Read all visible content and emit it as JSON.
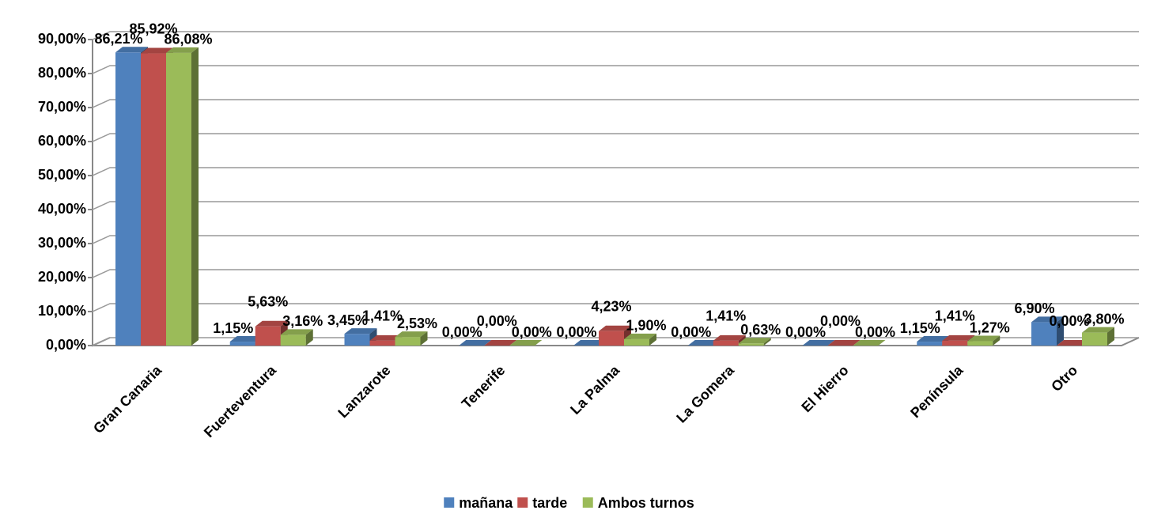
{
  "chart_data": {
    "type": "bar3d",
    "categories": [
      "Gran Canaria",
      "Fuerteventura",
      "Lanzarote",
      "Tenerife",
      "La Palma",
      "La Gomera",
      "El Hierro",
      "Península",
      "Otro"
    ],
    "series": [
      {
        "name": "mañana",
        "color": "#4f81bd",
        "values": [
          86.21,
          1.15,
          3.45,
          0,
          0,
          0,
          0,
          1.15,
          6.9
        ],
        "value_labels": [
          "86,21%",
          "1,15%",
          "3,45%",
          "0,00%",
          "0,00%",
          "0,00%",
          "0,00%",
          "1,15%",
          "6,90%"
        ]
      },
      {
        "name": "tarde",
        "color": "#c0504d",
        "values": [
          85.92,
          5.63,
          1.41,
          0,
          4.23,
          1.41,
          0,
          1.41,
          0
        ],
        "value_labels": [
          "85,92%",
          "5,63%",
          "1,41%",
          "0,00%",
          "4,23%",
          "1,41%",
          "0,00%",
          "1,41%",
          "0,00%"
        ]
      },
      {
        "name": "Ambos turnos",
        "color": "#9bbb59",
        "values": [
          86.08,
          3.16,
          2.53,
          0,
          1.9,
          0.63,
          0,
          1.27,
          3.8
        ],
        "value_labels": [
          "86,08%",
          "3,16%",
          "2,53%",
          "0,00%",
          "1,90%",
          "0,63%",
          "0,00%",
          "1,27%",
          "3,80%"
        ]
      }
    ],
    "ylim": [
      0,
      90
    ],
    "yticks": [
      {
        "value": 0,
        "label": "0,00%"
      },
      {
        "value": 10,
        "label": "10,00%"
      },
      {
        "value": 20,
        "label": "20,00%"
      },
      {
        "value": 30,
        "label": "30,00%"
      },
      {
        "value": 40,
        "label": "40,00%"
      },
      {
        "value": 50,
        "label": "50,00%"
      },
      {
        "value": 60,
        "label": "60,00%"
      },
      {
        "value": 70,
        "label": "70,00%"
      },
      {
        "value": 80,
        "label": "80,00%"
      },
      {
        "value": 90,
        "label": "90,00%"
      }
    ],
    "grid": true,
    "legend": "bottom"
  }
}
